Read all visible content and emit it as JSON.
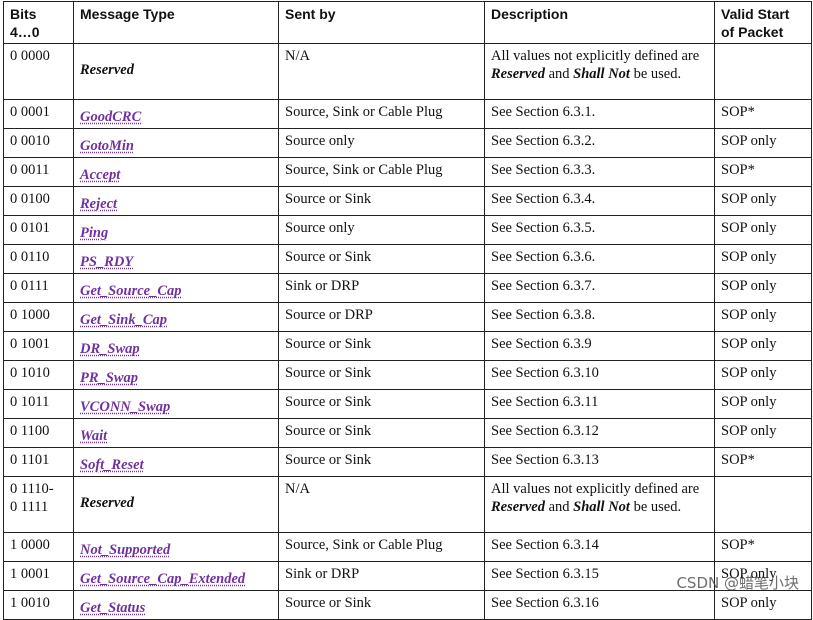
{
  "table": {
    "type_color": "#7030a0",
    "header": [
      "Bits\n4…0",
      "Message Type",
      "Sent by",
      "Description",
      "Valid Start of Packet"
    ],
    "rows": [
      {
        "bits": "0 0000",
        "type": "Reserved",
        "sent_by": "N/A",
        "description": [
          "All values not explicitly defined are ",
          "Reserved",
          " and ",
          "Shall Not",
          " be used."
        ]
      },
      {
        "bits": "0 0001",
        "type": "GoodCRC",
        "sent_by": "Source, Sink or Cable Plug",
        "description": "See Section 6.3.1.",
        "sop": "SOP*"
      },
      {
        "bits": "0 0010",
        "type": "GotoMin",
        "sent_by": "Source only",
        "description": "See Section 6.3.2.",
        "sop": "SOP only"
      },
      {
        "bits": "0 0011",
        "type": "Accept",
        "sent_by": "Source, Sink or Cable Plug",
        "description": "See Section 6.3.3.",
        "sop": "SOP*"
      },
      {
        "bits": "0 0100",
        "type": "Reject",
        "sent_by": "Source or Sink",
        "description": "See Section 6.3.4.",
        "sop": "SOP only"
      },
      {
        "bits": "0 0101",
        "type": "Ping",
        "sent_by": "Source only",
        "description": "See Section 6.3.5.",
        "sop": "SOP only"
      },
      {
        "bits": "0 0110",
        "type": "PS_RDY",
        "sent_by": "Source or Sink",
        "description": "See Section 6.3.6.",
        "sop": "SOP only"
      },
      {
        "bits": "0 0111",
        "type": "Get_Source_Cap",
        "sent_by": "Sink or DRP",
        "description": "See Section 6.3.7.",
        "sop": "SOP only"
      },
      {
        "bits": "0 1000",
        "type": "Get_Sink_Cap",
        "sent_by": "Source or DRP",
        "description": "See Section 6.3.8.",
        "sop": "SOP only"
      },
      {
        "bits": "0 1001",
        "type": "DR_Swap",
        "sent_by": "Source or Sink",
        "description": "See Section 6.3.9",
        "sop": "SOP only"
      },
      {
        "bits": "0 1010",
        "type": "PR_Swap",
        "sent_by": "Source or Sink",
        "description": "See Section 6.3.10",
        "sop": "SOP only"
      },
      {
        "bits": "0 1011",
        "type": "VCONN_Swap",
        "sent_by": "Source or Sink",
        "description": "See Section 6.3.11",
        "sop": "SOP only"
      },
      {
        "bits": "0 1100",
        "type": "Wait",
        "sent_by": "Source or Sink",
        "description": "See Section 6.3.12",
        "sop": "SOP only"
      },
      {
        "bits": "0 1101",
        "type": "Soft_Reset",
        "sent_by": "Source or Sink",
        "description": "See Section 6.3.13",
        "sop": "SOP*"
      },
      {
        "bits": "0 1110-\n0 1111",
        "type": "Reserved",
        "sent_by": "N/A",
        "description": [
          "All values not explicitly defined are ",
          "Reserved",
          " and ",
          "Shall Not",
          " be used."
        ]
      },
      {
        "bits": "1 0000",
        "type": "Not_Supported",
        "sent_by": "Source, Sink or Cable Plug",
        "description": "See Section 6.3.14",
        "sop": "SOP*"
      },
      {
        "bits": "1 0001",
        "type": "Get_Source_Cap_Extended",
        "sent_by": "Sink or DRP",
        "description": "See Section 6.3.15",
        "sop": "SOP only"
      },
      {
        "bits": "1 0010",
        "type": "Get_Status",
        "sent_by": "Source or Sink",
        "description": "See Section 6.3.16",
        "sop": "SOP only"
      }
    ],
    "watermark": "CSDN @蜡笔小块"
  }
}
